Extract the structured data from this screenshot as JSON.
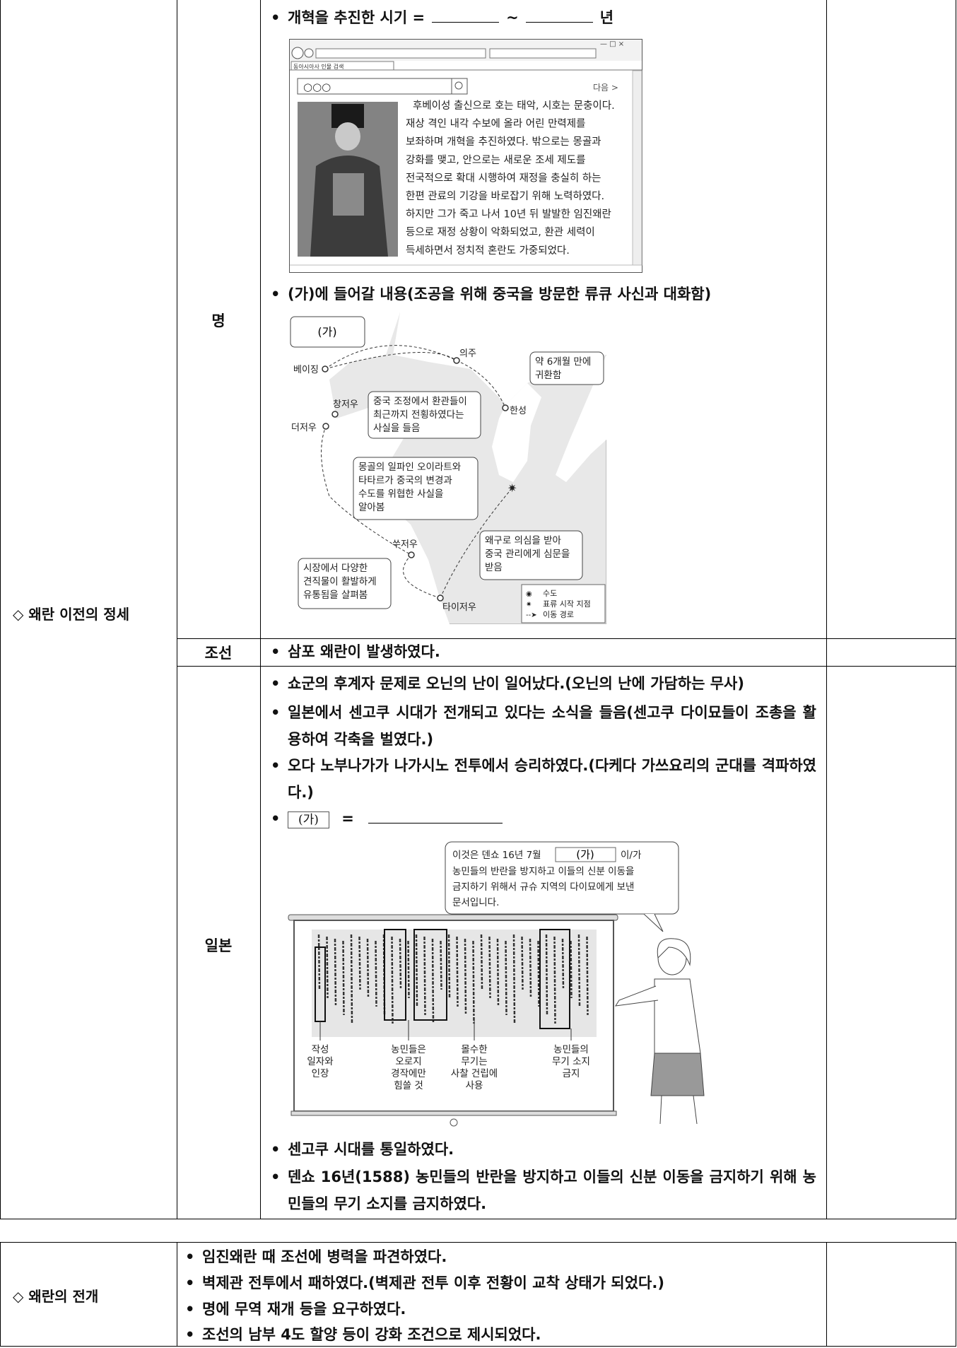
{
  "table1": {
    "section": "◇ 왜란 이전의 정세",
    "ming": {
      "label": "명",
      "item1": {
        "text": "개혁을 추진한 시기 =",
        "sep": "~",
        "unit": "년"
      },
      "browser": {
        "tab": "동아시아사 인물 검색",
        "query": "○○○",
        "next": "다음 >",
        "lines": [
          "후베이성 출신으로 호는 태악, 시호는 문충이다.",
          "재상 격인 내각 수보에 올라 어린 만력제를",
          "보좌하며 개혁을 추진하였다. 밖으로는 몽골과",
          "강화를 맺고, 안으로는 새로운 조세 제도를",
          "전국적으로 확대 시행하여 재정을 충실히 하는",
          "한편 관료의 기강을 바로잡기 위해 노력하였다.",
          "하지만 그가 죽고 나서 10년 뒤 발발한 임진왜란",
          "등으로 재정 상황이 악화되었고, 환관 세력이",
          "득세하면서 정치적 혼란도 가중되었다."
        ]
      },
      "item2": "(가)에 들어갈 내용(조공을 위해 중국을 방문한 류큐 사신과 대화함)",
      "map": {
        "box": "(가)",
        "places": [
          "베이징",
          "의주",
          "한성",
          "창저우",
          "더저우",
          "쑤저우",
          "타이저우"
        ],
        "notes": [
          [
            "약 6개월 만에",
            "귀환함"
          ],
          [
            "중국 조정에서 환관들이",
            "최근까지 전횡하였다는",
            "사실을 들음"
          ],
          [
            "몽골의 일파인 오이라트와",
            "타타르가 중국의 변경과",
            "수도를 위협한 사실을",
            "알아봄"
          ],
          [
            "왜구로 의심을 받아",
            "중국 관리에게 심문을",
            "받음"
          ],
          [
            "시장에서 다양한",
            "견직물이 활발하게",
            "유통됨을 살펴봄"
          ]
        ],
        "legend": [
          "수도",
          "표류 시작 지점",
          "이동 경로"
        ]
      }
    },
    "joseon": {
      "label": "조선",
      "items": [
        "삼포 왜란이 발생하였다."
      ]
    },
    "japan": {
      "label": "일본",
      "items": [
        "쇼군의 후계자 문제로 오닌의 난이 일어났다.(오닌의 난에 가담하는 무사)",
        "일본에서 센고쿠 시대가 전개되고 있다는 소식을 들음(센고쿠 다이묘들이 조총을 활용하여 각축을 벌였다.)",
        "오다 노부나가가 나가시노 전투에서 승리하였다.(다케다 가쓰요리의 군대를 격파하였다.)"
      ],
      "blank": {
        "box": "(가)",
        "eq": "="
      },
      "scroll": {
        "bubble": {
          "start": "이것은 덴쇼 16년 7월",
          "box": "(가)",
          "end": "이/가",
          "lines": [
            "농민들의 반란을 방지하고 이들의 신분 이동을",
            "금지하기 위해서 규슈 지역의 다이묘에게 보낸",
            "문서입니다."
          ]
        },
        "labels": [
          [
            "작성",
            "일자와",
            "인장"
          ],
          [
            "농민들은",
            "오로지",
            "경작에만",
            "힘쓸 것"
          ],
          [
            "몰수한",
            "무기는",
            "사찰 건립에",
            "사용"
          ],
          [
            "농민들의",
            "무기 소지",
            "금지"
          ]
        ]
      },
      "items_after": [
        "센고쿠 시대를 통일하였다.",
        "덴쇼 16년(1588) 농민들의 반란을 방지하고 이들의 신분 이동을 금지하기 위해 농민들의 무기 소지를 금지하였다."
      ]
    }
  },
  "table2": {
    "section": "◇ 왜란의 전개",
    "items": [
      "임진왜란 때 조선에 병력을 파견하였다.",
      "벽제관 전투에서 패하였다.(벽제관 전투 이후 전황이 교착 상태가 되었다.)",
      "명에 무역 재개 등을 요구하였다.",
      "조선의 남부 4도 할양 등이 강화 조건으로 제시되었다."
    ]
  }
}
